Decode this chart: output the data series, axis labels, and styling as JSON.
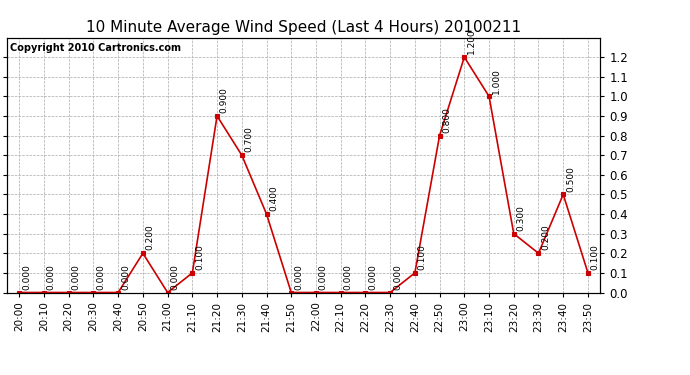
{
  "title": "10 Minute Average Wind Speed (Last 4 Hours) 20100211",
  "copyright": "Copyright 2010 Cartronics.com",
  "x_labels": [
    "20:00",
    "20:10",
    "20:20",
    "20:30",
    "20:40",
    "20:50",
    "21:00",
    "21:10",
    "21:20",
    "21:30",
    "21:40",
    "21:50",
    "22:00",
    "22:10",
    "22:20",
    "22:30",
    "22:40",
    "22:50",
    "23:00",
    "23:10",
    "23:20",
    "23:30",
    "23:40",
    "23:50"
  ],
  "y_values": [
    0.0,
    0.0,
    0.0,
    0.0,
    0.0,
    0.2,
    0.0,
    0.1,
    0.9,
    0.7,
    0.4,
    0.0,
    0.0,
    0.0,
    0.0,
    0.0,
    0.1,
    0.8,
    1.2,
    1.0,
    0.3,
    0.2,
    0.5,
    0.1
  ],
  "line_color": "#cc0000",
  "marker_color": "#cc0000",
  "background_color": "#ffffff",
  "grid_color": "#aaaaaa",
  "ylim": [
    0.0,
    1.3
  ],
  "yticks": [
    0.0,
    0.1,
    0.2,
    0.3,
    0.4,
    0.5,
    0.6,
    0.7,
    0.8,
    0.9,
    1.0,
    1.1,
    1.2
  ],
  "title_fontsize": 11,
  "copyright_fontsize": 7,
  "label_fontsize": 6.5,
  "tick_fontsize": 8.5,
  "xtick_fontsize": 7.5
}
